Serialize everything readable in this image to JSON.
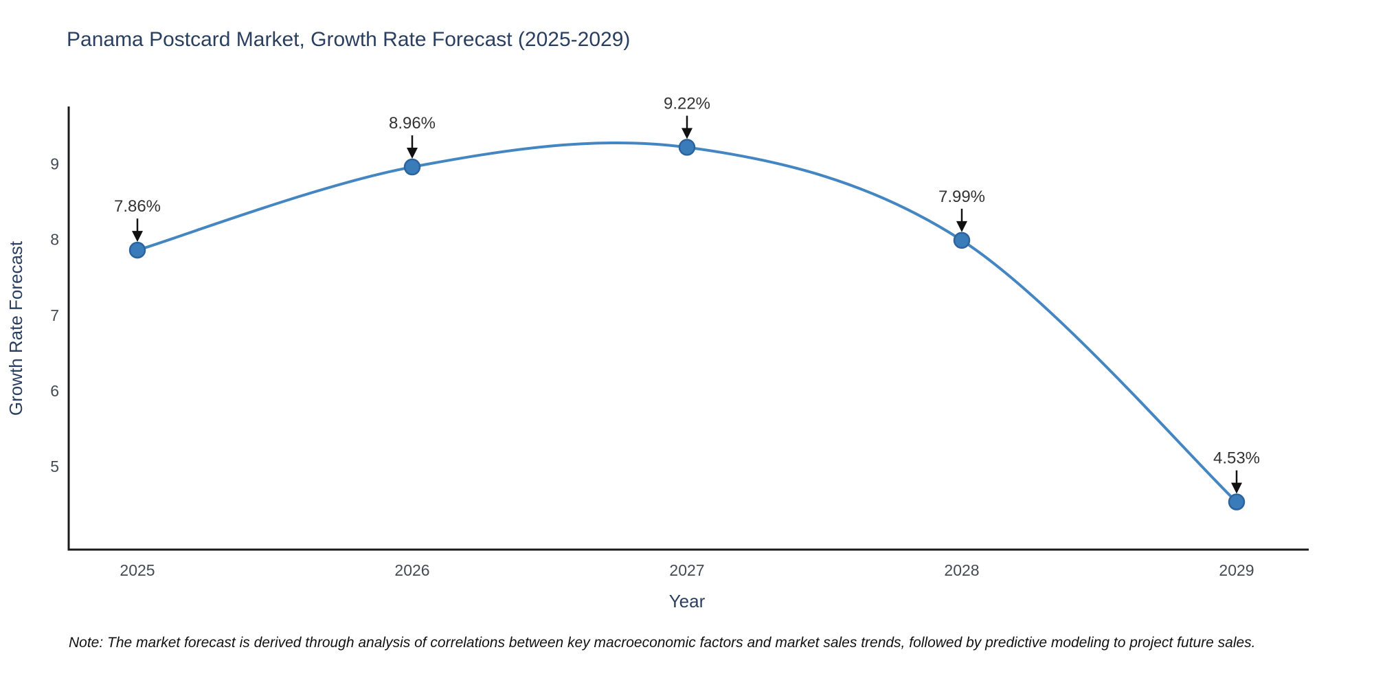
{
  "figure": {
    "title": "Panama Postcard Market, Growth Rate Forecast (2025-2029)",
    "note": "Note: The market forecast is derived through analysis of correlations between key macroeconomic factors and market sales trends, followed by predictive modeling to project future sales."
  },
  "chart_data": {
    "type": "line",
    "title": "Panama Postcard Market, Growth Rate Forecast (2025-2029)",
    "xlabel": "Year",
    "ylabel": "Growth Rate Forecast",
    "x": [
      2025,
      2026,
      2027,
      2028,
      2029
    ],
    "series": [
      {
        "name": "Growth Rate Forecast",
        "values": [
          7.86,
          8.96,
          9.22,
          7.99,
          4.53
        ],
        "point_labels": [
          "7.86%",
          "8.96%",
          "9.22%",
          "7.99%",
          "4.53%"
        ]
      }
    ],
    "x_tick_labels": [
      "2025",
      "2026",
      "2027",
      "2028",
      "2029"
    ],
    "y_ticks": [
      5,
      6,
      7,
      8,
      9
    ],
    "xlim": [
      2024.75,
      2029.25
    ],
    "ylim": [
      3.9,
      9.76
    ],
    "grid": false,
    "legend": "none",
    "line_shape": "spline",
    "marker": "circle",
    "annotations_arrow": "down",
    "colors": {
      "line": "#4486c2",
      "marker_fill": "#3a7cba",
      "marker_edge": "#2d639c",
      "axis_line": "#1a1a1a",
      "tick_label": "#444a54",
      "annotation_text": "#333333",
      "arrow": "#111111",
      "title": "#2a3f5f",
      "axis_label": "#2a3f5f",
      "note_text": "#111111"
    }
  }
}
